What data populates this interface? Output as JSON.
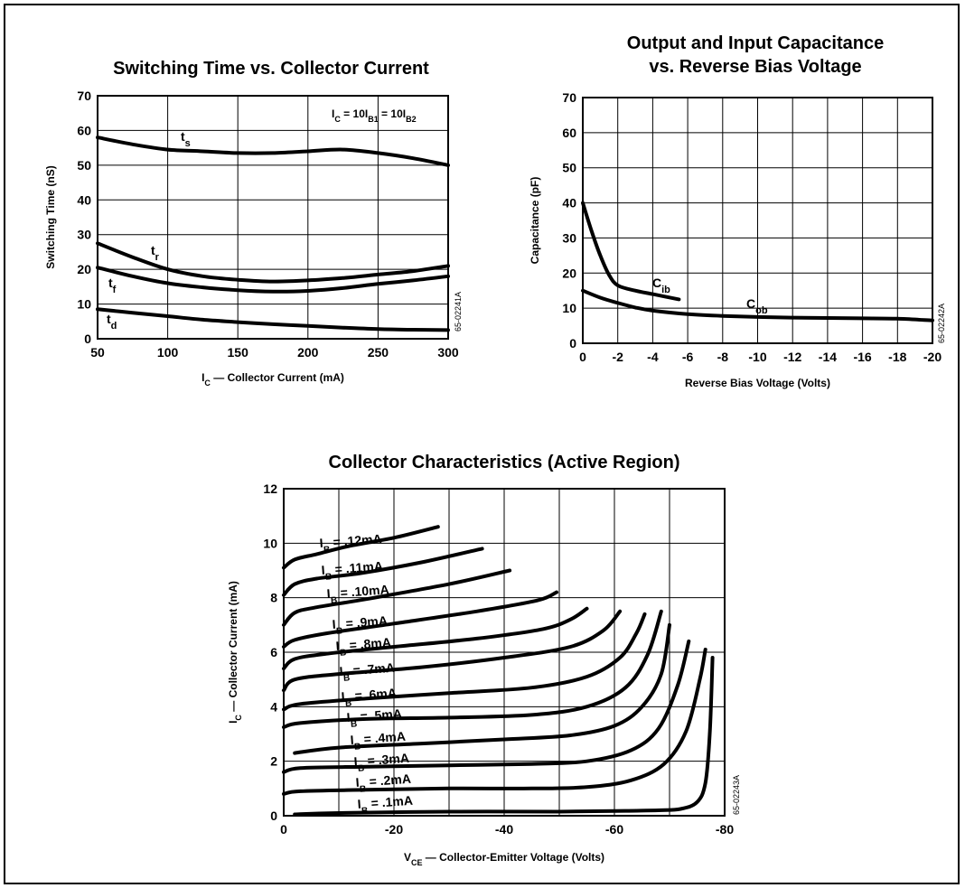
{
  "chart_data": [
    {
      "id": "switching",
      "type": "line",
      "title": "Switching Time vs. Collector Current",
      "xlabel": "I_C — Collector Current (mA)",
      "ylabel": "Switching Time (nS)",
      "xlim": [
        50,
        300
      ],
      "ylim": [
        0,
        70
      ],
      "xticks": [
        50,
        100,
        150,
        200,
        250,
        300
      ],
      "yticks": [
        0,
        10,
        20,
        30,
        40,
        50,
        60,
        70
      ],
      "grid": true,
      "annotation": "I_C = 10I_B1 = 10I_B2",
      "figure_code": "65-02241A",
      "series": [
        {
          "name": "t_s",
          "x": [
            50,
            75,
            100,
            125,
            150,
            175,
            200,
            225,
            250,
            275,
            300
          ],
          "y": [
            58,
            56,
            54.5,
            54,
            53.5,
            53.5,
            54,
            54.5,
            53.5,
            52,
            50
          ]
        },
        {
          "name": "t_r",
          "x": [
            50,
            75,
            100,
            125,
            150,
            175,
            200,
            225,
            250,
            275,
            300
          ],
          "y": [
            27.5,
            23.5,
            20,
            18,
            17,
            16.5,
            16.8,
            17.5,
            18.5,
            19.5,
            21
          ]
        },
        {
          "name": "t_f",
          "x": [
            50,
            75,
            100,
            125,
            150,
            175,
            200,
            225,
            250,
            275,
            300
          ],
          "y": [
            20.5,
            18,
            16,
            14.8,
            14,
            13.6,
            13.8,
            14.6,
            15.8,
            16.8,
            18
          ]
        },
        {
          "name": "t_d",
          "x": [
            50,
            75,
            100,
            125,
            150,
            175,
            200,
            225,
            250,
            275,
            300
          ],
          "y": [
            8.5,
            7.5,
            6.5,
            5.5,
            4.8,
            4.2,
            3.7,
            3.2,
            2.8,
            2.6,
            2.5
          ]
        }
      ]
    },
    {
      "id": "capacitance",
      "type": "line",
      "title": "Output and Input Capacitance vs. Reverse Bias Voltage",
      "xlabel": "Reverse Bias Voltage (Volts)",
      "ylabel": "Capacitance (pF)",
      "xlim": [
        0,
        -20
      ],
      "ylim": [
        0,
        70
      ],
      "xticks": [
        0,
        -2,
        -4,
        -6,
        -8,
        -10,
        -12,
        -14,
        -16,
        -18,
        -20
      ],
      "yticks": [
        0,
        10,
        20,
        30,
        40,
        50,
        60,
        70
      ],
      "grid": true,
      "figure_code": "65-02242A",
      "series": [
        {
          "name": "C_ib",
          "x": [
            0,
            -0.5,
            -1,
            -1.5,
            -2,
            -3,
            -4,
            -5.5
          ],
          "y": [
            40,
            32,
            25,
            19.5,
            16.5,
            15,
            14,
            12.5
          ]
        },
        {
          "name": "C_ob",
          "x": [
            0,
            -1,
            -2,
            -3,
            -4,
            -6,
            -8,
            -10,
            -12,
            -14,
            -16,
            -18,
            -20
          ],
          "y": [
            15,
            13,
            11.5,
            10.2,
            9.3,
            8.3,
            7.8,
            7.5,
            7.3,
            7.2,
            7.1,
            7,
            6.5
          ]
        }
      ]
    },
    {
      "id": "collector",
      "type": "line",
      "title": "Collector Characteristics (Active Region)",
      "xlabel": "V_CE — Collector-Emitter Voltage (Volts)",
      "ylabel": "I_C — Collector Current (mA)",
      "xlim": [
        0,
        -80
      ],
      "ylim": [
        0,
        12
      ],
      "xticks": [
        0,
        -20,
        -40,
        -60,
        -80
      ],
      "xticks_minor_step": 10,
      "yticks": [
        0,
        2,
        4,
        6,
        8,
        10,
        12
      ],
      "grid": true,
      "figure_code": "65-02243A",
      "series": [
        {
          "name": "I_B = .12mA",
          "x": [
            0,
            -2,
            -6,
            -12,
            -20,
            -28
          ],
          "y": [
            9.1,
            9.4,
            9.6,
            9.9,
            10.2,
            10.6
          ]
        },
        {
          "name": "I_B = .11mA",
          "x": [
            0,
            -2,
            -6,
            -14,
            -25,
            -36
          ],
          "y": [
            8.1,
            8.5,
            8.7,
            8.9,
            9.3,
            9.8
          ]
        },
        {
          "name": "I_B = .10mA",
          "x": [
            0,
            -2,
            -6,
            -15,
            -30,
            -41
          ],
          "y": [
            7,
            7.45,
            7.65,
            7.95,
            8.5,
            9
          ]
        },
        {
          "name": "I_B = .9mA",
          "x": [
            0,
            -2,
            -8,
            -20,
            -35,
            -46,
            -49.5
          ],
          "y": [
            6.2,
            6.45,
            6.7,
            7.05,
            7.5,
            7.9,
            8.2
          ]
        },
        {
          "name": "I_B = .8mA",
          "x": [
            0,
            -2,
            -8,
            -20,
            -35,
            -47,
            -52,
            -55
          ],
          "y": [
            5.4,
            5.75,
            5.95,
            6.2,
            6.5,
            6.85,
            7.2,
            7.6
          ]
        },
        {
          "name": "I_B = .7mA",
          "x": [
            0,
            -2,
            -10,
            -25,
            -40,
            -52,
            -58,
            -61
          ],
          "y": [
            4.6,
            5,
            5.2,
            5.45,
            5.8,
            6.2,
            6.8,
            7.5
          ]
        },
        {
          "name": "I_B = .6mA",
          "x": [
            0,
            -3,
            -15,
            -30,
            -45,
            -55,
            -61,
            -64,
            -65.5
          ],
          "y": [
            3.9,
            4.1,
            4.3,
            4.5,
            4.7,
            5.1,
            5.8,
            6.7,
            7.4
          ]
        },
        {
          "name": "I_B = .5mA",
          "x": [
            0,
            -3,
            -15,
            -30,
            -45,
            -55,
            -62,
            -66,
            -68.5
          ],
          "y": [
            3.25,
            3.4,
            3.55,
            3.6,
            3.7,
            4,
            4.7,
            5.9,
            7.5
          ]
        },
        {
          "name": "I_B = .4mA",
          "x": [
            -2,
            -10,
            -25,
            -40,
            -52,
            -60,
            -65,
            -68.5,
            -70
          ],
          "y": [
            2.3,
            2.5,
            2.65,
            2.8,
            2.95,
            3.3,
            4,
            5.2,
            7
          ]
        },
        {
          "name": "I_B = .3mA",
          "x": [
            0,
            -3,
            -15,
            -30,
            -45,
            -55,
            -63,
            -68,
            -71.5,
            -73.5
          ],
          "y": [
            1.6,
            1.75,
            1.8,
            1.85,
            1.9,
            2,
            2.4,
            3.2,
            4.8,
            6.4
          ]
        },
        {
          "name": "I_B = .2mA",
          "x": [
            0,
            -3,
            -15,
            -30,
            -45,
            -55,
            -63,
            -69,
            -73,
            -75.5,
            -76.5
          ],
          "y": [
            0.8,
            0.9,
            0.95,
            1,
            1,
            1.05,
            1.3,
            1.9,
            3.1,
            5,
            6.1
          ]
        },
        {
          "name": "I_B = .1mA",
          "x": [
            -2,
            -10,
            -30,
            -50,
            -62,
            -68,
            -72,
            -75,
            -76.5,
            -77.3,
            -77.8
          ],
          "y": [
            0.05,
            0.1,
            0.15,
            0.15,
            0.18,
            0.2,
            0.25,
            0.5,
            1.2,
            3,
            5.8
          ]
        }
      ]
    }
  ]
}
